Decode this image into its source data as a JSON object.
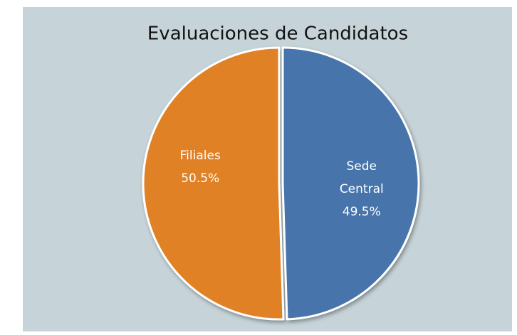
{
  "chart_data": {
    "type": "pie",
    "title": "Evaluaciones de Candidatos",
    "categories": [
      "Sede Central",
      "Filiales"
    ],
    "values": [
      49.5,
      50.5
    ],
    "value_labels": [
      "49.5%",
      "50.5%"
    ],
    "colors": [
      "#4675ab",
      "#e08128"
    ]
  }
}
